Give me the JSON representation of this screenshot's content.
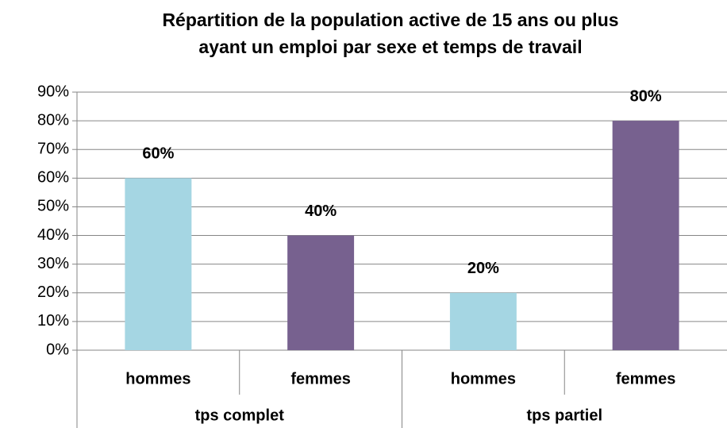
{
  "chart_data": {
    "type": "bar",
    "title": [
      "Répartition de la population active de 15 ans ou plus",
      "ayant un emploi par sexe et temps de travail"
    ],
    "groups": [
      {
        "name": "tps complet",
        "categories": [
          "hommes",
          "femmes"
        ],
        "values": [
          60,
          40
        ],
        "value_labels": [
          "60%",
          "40%"
        ],
        "colors": [
          "#a5d6e3",
          "#77618f"
        ]
      },
      {
        "name": "tps partiel",
        "categories": [
          "hommes",
          "femmes"
        ],
        "values": [
          20,
          80
        ],
        "value_labels": [
          "20%",
          "80%"
        ],
        "colors": [
          "#a5d6e3",
          "#77618f"
        ]
      }
    ],
    "ylim": [
      0,
      90
    ],
    "yticks": [
      {
        "value": 0,
        "label": "0%"
      },
      {
        "value": 10,
        "label": "10%"
      },
      {
        "value": 20,
        "label": "20%"
      },
      {
        "value": 30,
        "label": "30%"
      },
      {
        "value": 40,
        "label": "40%"
      },
      {
        "value": 50,
        "label": "50%"
      },
      {
        "value": 60,
        "label": "60%"
      },
      {
        "value": 70,
        "label": "70%"
      },
      {
        "value": 80,
        "label": "80%"
      },
      {
        "value": 90,
        "label": "90%"
      }
    ],
    "grid": true
  }
}
